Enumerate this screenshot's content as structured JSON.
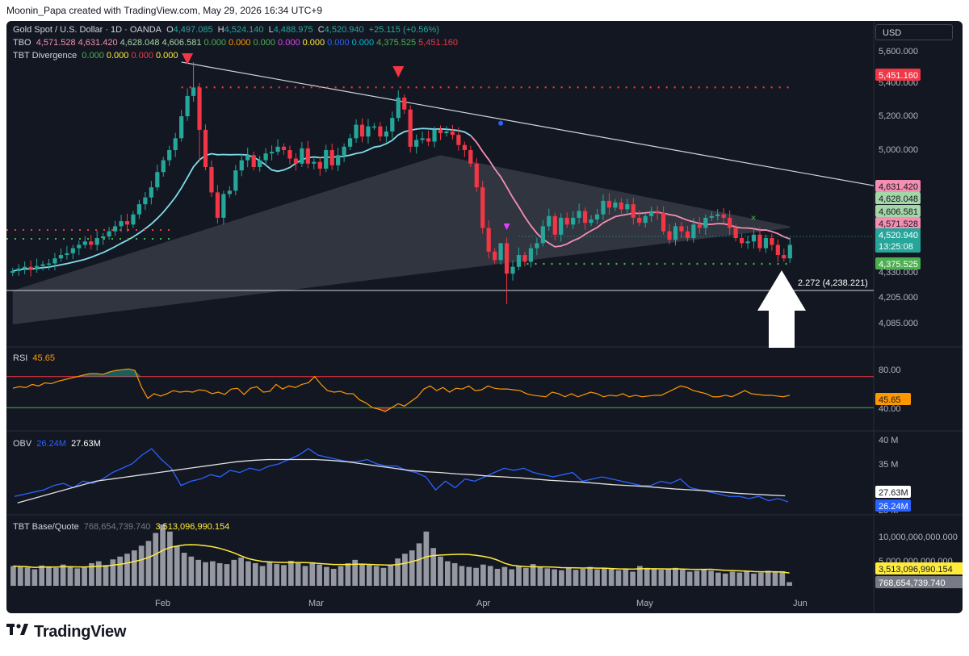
{
  "header": {
    "text": "Moonin_Papa created with TradingView.com, May 29, 2026 16:34 UTC+9"
  },
  "footer": {
    "brand": "TradingView"
  },
  "currency": "USD",
  "legend": {
    "symbol": "Gold Spot / U.S. Dollar · 1D · OANDA",
    "o_label": "O",
    "o_value": "4,497.085",
    "h_label": "H",
    "h_value": "4,524.140",
    "l_label": "L",
    "l_value": "4,488.975",
    "c_label": "C",
    "c_value": "4,520.940",
    "change": "+25.115 (+0.56%)",
    "tbo_label": "TBO",
    "tbo_values": [
      "4,571.528",
      "4,631.420",
      "4,628.048",
      "4,606.581",
      "0.000",
      "0.000",
      "0.000",
      "0.000",
      "0.000",
      "0.000",
      "0.000",
      "4,375.525",
      "5,451.160"
    ],
    "tbo_colors": [
      "#f48fb1",
      "#f48fb1",
      "#a5d6a7",
      "#a5d6a7",
      "#4caf50",
      "#ff9800",
      "#4caf50",
      "#e040fb",
      "#ffeb3b",
      "#2962ff",
      "#00bcd4",
      "#4caf50",
      "#f23645"
    ],
    "div_label": "TBT Divergence",
    "div_values": [
      "0.000",
      "0.000",
      "0.000",
      "0.000"
    ],
    "div_colors": [
      "#4caf50",
      "#ffeb3b",
      "#f23645",
      "#ffeb3b"
    ],
    "rsi_label": "RSI",
    "rsi_value": "45.65",
    "obv_label": "OBV",
    "obv_value1": "26.24M",
    "obv_value2": "27.63M",
    "bq_label": "TBT Base/Quote",
    "bq_value1": "768,654,739.740",
    "bq_value2": "3,513,096,990.154"
  },
  "price_axis": {
    "ticks": [
      "5,600.000",
      "5,400.000",
      "5,200.000",
      "5,000.000",
      "4,330.000",
      "4,205.000",
      "4,085.000"
    ]
  },
  "price_tags": {
    "resistance": "5,451.160",
    "tbo1": "4,631.420",
    "tbo2": "4,628.048",
    "tbo3": "4,606.581",
    "tbo4": "4,571.528",
    "last": "4,520.940",
    "countdown": "13:25:08",
    "support": "4,375.525"
  },
  "annotation": {
    "fib": "2.272 (4,238.221)"
  },
  "rsi_axis": {
    "ticks": [
      "80.00",
      "40.00"
    ],
    "tag": "45.65"
  },
  "obv_axis": {
    "ticks": [
      "40 M",
      "35 M",
      "25 M"
    ],
    "tag_white": "27.63M",
    "tag_blue": "26.24M"
  },
  "bq_axis": {
    "ticks": [
      "10,000,000,000.000",
      "5,000,000,000.000"
    ],
    "tag_yellow": "3,513,096,990.154",
    "tag_gray": "768,654,739.740"
  },
  "time_axis": {
    "labels": [
      "Feb",
      "Mar",
      "Apr",
      "May",
      "Jun"
    ]
  },
  "colors": {
    "up": "#26a69a",
    "down": "#f23645",
    "background": "#131722",
    "text": "#b2b5be"
  },
  "chart_data": [
    {
      "type": "candlestick",
      "title": "Gold Spot / U.S. Dollar · 1D · OANDA",
      "y_unit": "USD",
      "close": [
        4365,
        4380,
        4390,
        4375,
        4395,
        4405,
        4410,
        4440,
        4460,
        4470,
        4500,
        4520,
        4540,
        4520,
        4560,
        4570,
        4600,
        4630,
        4660,
        4640,
        4700,
        4760,
        4800,
        4860,
        4950,
        5020,
        5080,
        5150,
        5280,
        5400,
        5450,
        5200,
        4980,
        4830,
        4680,
        4820,
        4840,
        4960,
        5020,
        5050,
        4980,
        5020,
        5060,
        5070,
        5100,
        5080,
        5030,
        5000,
        5090,
        5000,
        5010,
        4970,
        5080,
        4990,
        5050,
        5100,
        5150,
        5230,
        5160,
        5220,
        5220,
        5160,
        5190,
        5270,
        5390,
        5320,
        5100,
        5140,
        5150,
        5130,
        5200,
        5180,
        5190,
        5170,
        5110,
        5080,
        5000,
        4860,
        4620,
        4480,
        4430,
        4530,
        4350,
        4390,
        4460,
        4420,
        4500,
        4530,
        4630,
        4690,
        4580,
        4680,
        4640,
        4680,
        4720,
        4650,
        4670,
        4700,
        4780,
        4740,
        4770,
        4730,
        4760,
        4680,
        4650,
        4690,
        4720,
        4710,
        4600,
        4550,
        4630,
        4600,
        4560,
        4640,
        4620,
        4680,
        4690,
        4700,
        4680,
        4620,
        4560,
        4530,
        4540,
        4580,
        4500,
        4560,
        4520,
        4460,
        4440,
        4520
      ],
      "note": "approximate daily closes read from the chart"
    },
    {
      "type": "line",
      "title": "RSI",
      "ylim": [
        0,
        100
      ],
      "levels": [
        70,
        30
      ],
      "values": [
        55,
        57,
        56,
        60,
        58,
        62,
        61,
        64,
        66,
        68,
        70,
        72,
        74,
        74,
        73,
        76,
        78,
        79,
        80,
        78,
        57,
        42,
        48,
        45,
        48,
        52,
        50,
        51,
        50,
        53,
        52,
        48,
        50,
        47,
        54,
        55,
        47,
        55,
        57,
        50,
        51,
        60,
        54,
        58,
        56,
        60,
        62,
        70,
        60,
        52,
        50,
        51,
        48,
        48,
        40,
        36,
        30,
        28,
        25,
        30,
        35,
        32,
        38,
        44,
        54,
        58,
        52,
        56,
        50,
        55,
        54,
        58,
        52,
        53,
        58,
        55,
        54,
        54,
        53,
        52,
        48,
        46,
        45,
        44,
        50,
        48,
        44,
        48,
        44,
        47,
        50,
        48,
        44,
        46,
        45,
        48,
        44,
        46,
        44,
        45,
        46,
        46,
        50,
        54,
        58,
        56,
        52,
        50,
        48,
        44,
        44,
        46,
        44,
        48,
        52,
        48,
        47,
        46,
        46,
        45,
        44,
        46
      ],
      "last": 45.65
    },
    {
      "type": "line",
      "title": "OBV",
      "y_unit": "M",
      "series": [
        {
          "name": "OBV",
          "values": [
            27.5,
            28,
            28.5,
            29,
            30,
            30.5,
            29.5,
            31,
            30.5,
            31.5,
            33,
            34,
            35,
            37,
            38.5,
            36,
            34,
            30,
            31,
            31.5,
            32.5,
            32,
            33.5,
            33,
            34,
            33.5,
            34.5,
            35,
            36,
            37,
            38.5,
            37,
            36.5,
            36,
            35.5,
            35.5,
            36,
            35,
            34.5,
            34.5,
            33.5,
            33,
            32,
            29,
            31,
            29.5,
            31.5,
            31,
            32,
            33,
            34,
            33.5,
            34,
            33,
            32.5,
            32,
            32.5,
            33,
            31,
            31.5,
            32,
            31.5,
            31,
            30.5,
            30,
            30,
            31,
            30.5,
            31.5,
            29.5,
            29,
            28.5,
            28,
            27.5,
            27.5,
            27,
            27.5,
            26.5,
            27,
            26.24
          ]
        },
        {
          "name": "OBV average",
          "values": [
            26,
            27,
            28,
            29,
            30,
            31,
            31.5,
            32,
            32.5,
            33,
            33.5,
            34,
            34.5,
            35,
            35.5,
            35.8,
            36,
            36,
            36,
            36,
            35.8,
            35.5,
            35,
            34.5,
            34,
            33.5,
            33.2,
            33,
            32.7,
            32.5,
            32.2,
            32,
            31.8,
            31.5,
            31.2,
            31,
            30.8,
            30.5,
            30.2,
            30,
            29.8,
            29.5,
            29.2,
            29,
            28.8,
            28.5,
            28.2,
            28,
            27.8,
            27.63
          ]
        }
      ]
    },
    {
      "type": "bar",
      "title": "TBT Base/Quote",
      "ylim": [
        0,
        13000000000
      ],
      "values": [
        4.2,
        4.0,
        3.9,
        3.5,
        4.3,
        4.1,
        3.8,
        4.5,
        4.0,
        3.7,
        3.9,
        4.8,
        5.2,
        4.4,
        5.6,
        6.2,
        6.8,
        7.5,
        8.5,
        9.5,
        11.2,
        13.0,
        11.5,
        8.5,
        7.0,
        6.2,
        5.5,
        5.0,
        5.2,
        4.8,
        4.6,
        5.5,
        6.0,
        5.2,
        4.8,
        4.2,
        5.0,
        4.6,
        4.4,
        5.3,
        4.8,
        4.2,
        5.0,
        4.5,
        4.0,
        3.6,
        4.2,
        4.8,
        5.5,
        4.7,
        4.5,
        4.2,
        3.8,
        4.5,
        5.8,
        6.8,
        7.5,
        9.0,
        11.5,
        8.0,
        6.2,
        5.2,
        4.8,
        4.2,
        4.0,
        3.8,
        4.5,
        4.2,
        3.6,
        4.0,
        3.5,
        4.2,
        3.8,
        4.6,
        4.0,
        3.7,
        3.5,
        3.3,
        3.8,
        3.4,
        3.6,
        4.0,
        3.5,
        3.8,
        3.6,
        3.3,
        3.5,
        3.0,
        4.2,
        3.8,
        3.5,
        3.4,
        3.6,
        3.8,
        3.4,
        3.0,
        3.2,
        3.5,
        3.2,
        2.8,
        2.6,
        3.0,
        2.8,
        3.1,
        2.6,
        2.8,
        3.2,
        3.0,
        3.1,
        0.77
      ],
      "value_scale": "billions",
      "line_last": 3513096990.154,
      "last": 768654739.74
    }
  ]
}
